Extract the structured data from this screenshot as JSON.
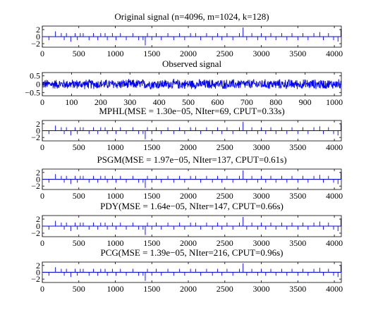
{
  "chart_data": [
    {
      "type": "line",
      "title": "Original signal (n=4096, m=1024, k=128)",
      "xlim": [
        0,
        4096
      ],
      "ylim": [
        -3,
        3
      ],
      "xticks": [
        "0",
        "500",
        "1000",
        "1500",
        "2000",
        "2500",
        "3000",
        "3500",
        "4000"
      ],
      "yticks": [
        "2",
        "0",
        "−2"
      ],
      "series": [
        {
          "kind": "sparse",
          "spikes": [
            [
              90,
              -1
            ],
            [
              180,
              1.5
            ],
            [
              260,
              1
            ],
            [
              300,
              -1
            ],
            [
              330,
              1
            ],
            [
              390,
              -1.4
            ],
            [
              450,
              1
            ],
            [
              480,
              -1
            ],
            [
              520,
              1
            ],
            [
              560,
              1
            ],
            [
              640,
              -1
            ],
            [
              700,
              1
            ],
            [
              760,
              -1
            ],
            [
              800,
              1
            ],
            [
              860,
              1
            ],
            [
              890,
              -1
            ],
            [
              960,
              1
            ],
            [
              1010,
              -1
            ],
            [
              1070,
              1
            ],
            [
              1150,
              -1
            ],
            [
              1240,
              1
            ],
            [
              1320,
              -1
            ],
            [
              1380,
              -1
            ],
            [
              1410,
              -2.5
            ],
            [
              1440,
              1
            ],
            [
              1500,
              -1
            ],
            [
              1560,
              1
            ],
            [
              1630,
              -1
            ],
            [
              1720,
              1
            ],
            [
              1800,
              -1
            ],
            [
              1880,
              1
            ],
            [
              1950,
              -1
            ],
            [
              2030,
              1
            ],
            [
              2100,
              1
            ],
            [
              2170,
              -1
            ],
            [
              2250,
              1
            ],
            [
              2330,
              -1
            ],
            [
              2400,
              1
            ],
            [
              2460,
              -1
            ],
            [
              2530,
              1
            ],
            [
              2610,
              -1
            ],
            [
              2700,
              1
            ],
            [
              2750,
              2.6
            ],
            [
              2800,
              -1
            ],
            [
              2870,
              1
            ],
            [
              2950,
              -1
            ],
            [
              3000,
              1
            ],
            [
              3060,
              -1
            ],
            [
              3130,
              1
            ],
            [
              3200,
              -1
            ],
            [
              3280,
              1
            ],
            [
              3350,
              -1
            ],
            [
              3420,
              1
            ],
            [
              3500,
              -1
            ],
            [
              3570,
              1
            ],
            [
              3640,
              -1
            ],
            [
              3720,
              1
            ],
            [
              3800,
              1.3
            ],
            [
              3850,
              -1
            ],
            [
              3920,
              1
            ],
            [
              3990,
              -1
            ],
            [
              4050,
              -1.4
            ],
            [
              4090,
              2.2
            ]
          ]
        }
      ]
    },
    {
      "type": "line",
      "title": "Observed signal",
      "xlim": [
        0,
        1024
      ],
      "ylim": [
        -0.7,
        0.7
      ],
      "xticks": [
        "0",
        "100",
        "200",
        "300",
        "400",
        "500",
        "600",
        "700",
        "800",
        "900",
        "1000"
      ],
      "yticks": [
        "0.5",
        "0",
        "−0.5"
      ],
      "series": [
        {
          "kind": "noise",
          "n": 1024,
          "amplitude": 0.3
        }
      ]
    },
    {
      "type": "line",
      "title": "MPHL(MSE = 1.30e−05, NIter=69, CPUT=0.33s)",
      "xlim": [
        0,
        4096
      ],
      "ylim": [
        -3,
        3
      ],
      "xticks": [
        "0",
        "500",
        "1000",
        "1500",
        "2000",
        "2500",
        "3000",
        "3500",
        "4000"
      ],
      "yticks": [
        "2",
        "0",
        "−2"
      ],
      "series": [
        {
          "kind": "sparse",
          "same_as": 0
        }
      ]
    },
    {
      "type": "line",
      "title": "PSGM(MSE = 1.97e−05, NIter=137, CPUT=0.61s)",
      "xlim": [
        0,
        4096
      ],
      "ylim": [
        -3,
        3
      ],
      "xticks": [
        "0",
        "500",
        "1000",
        "1500",
        "2000",
        "2500",
        "3000",
        "3500",
        "4000"
      ],
      "yticks": [
        "2",
        "0",
        "−2"
      ],
      "series": [
        {
          "kind": "sparse",
          "same_as": 0
        }
      ]
    },
    {
      "type": "line",
      "title": "PDY(MSE = 1.64e−05, NIter=147, CPUT=0.66s)",
      "xlim": [
        0,
        4096
      ],
      "ylim": [
        -3,
        3
      ],
      "xticks": [
        "0",
        "500",
        "1000",
        "1500",
        "2000",
        "2500",
        "3000",
        "3500",
        "4000"
      ],
      "yticks": [
        "2",
        "0",
        "−2"
      ],
      "series": [
        {
          "kind": "sparse",
          "same_as": 0
        }
      ]
    },
    {
      "type": "line",
      "title": "PCG(MSE = 1.39e−05, NIter=216, CPUT=0.96s)",
      "xlim": [
        0,
        4096
      ],
      "ylim": [
        -3,
        3
      ],
      "xticks": [
        "0",
        "500",
        "1000",
        "1500",
        "2000",
        "2500",
        "3000",
        "3500",
        "4000"
      ],
      "yticks": [
        "2",
        "0",
        "−2"
      ],
      "series": [
        {
          "kind": "sparse",
          "same_as": 0
        }
      ]
    }
  ],
  "colors": {
    "line": "#0000ff",
    "axes": "#000000"
  }
}
